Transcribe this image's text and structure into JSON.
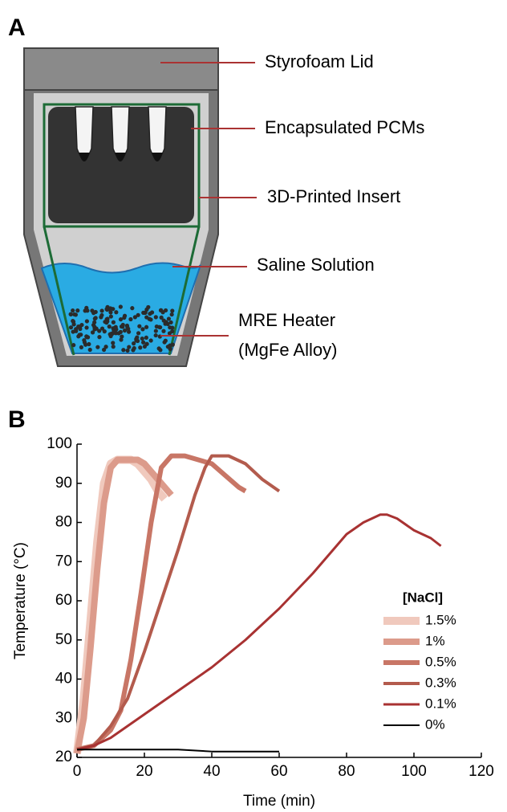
{
  "panel_a": {
    "label": "A",
    "labels": [
      "Styrofoam Lid",
      "Encapsulated PCMs",
      "3D-Printed Insert",
      "Saline Solution",
      "MRE Heater",
      "(MgFe Alloy)"
    ]
  },
  "panel_b": {
    "label": "B"
  },
  "chart_data": {
    "type": "line",
    "xlabel": "Time (min)",
    "ylabel": "Temperature (°C)",
    "legend_title": "[NaCl]",
    "xlim": [
      0,
      120
    ],
    "ylim": [
      20,
      100
    ],
    "xticks": [
      0,
      20,
      40,
      60,
      80,
      100,
      120
    ],
    "yticks": [
      20,
      30,
      40,
      50,
      60,
      70,
      80,
      90,
      100
    ],
    "grid": false,
    "series": [
      {
        "name": "1.5%",
        "color": "#f0c9bd",
        "width": 10,
        "x": [
          0,
          2,
          4,
          6,
          8,
          10,
          12,
          14,
          16,
          18,
          20,
          22,
          24,
          26
        ],
        "values": [
          21,
          35,
          55,
          75,
          90,
          95,
          96,
          96,
          96,
          95,
          93,
          91,
          88,
          86
        ]
      },
      {
        "name": "1%",
        "color": "#dc9b8b",
        "width": 8,
        "x": [
          0,
          2,
          4,
          6,
          8,
          10,
          12,
          14,
          16,
          18,
          20,
          22,
          24,
          26,
          28
        ],
        "values": [
          21,
          30,
          48,
          68,
          85,
          94,
          96,
          96,
          96,
          96,
          95,
          93,
          91,
          89,
          87
        ]
      },
      {
        "name": "0.5%",
        "color": "#c87666",
        "width": 6,
        "x": [
          0,
          5,
          10,
          13,
          16,
          19,
          22,
          25,
          28,
          32,
          36,
          40,
          44,
          48,
          50
        ],
        "values": [
          22,
          23,
          27,
          32,
          45,
          62,
          80,
          94,
          97,
          97,
          96,
          95,
          92,
          89,
          88
        ]
      },
      {
        "name": "0.3%",
        "color": "#b35b4d",
        "width": 4,
        "x": [
          0,
          5,
          10,
          15,
          20,
          25,
          30,
          35,
          38,
          40,
          45,
          50,
          55,
          60
        ],
        "values": [
          22,
          23,
          28,
          35,
          47,
          60,
          73,
          87,
          94,
          97,
          97,
          95,
          91,
          88
        ]
      },
      {
        "name": "0.1%",
        "color": "#a83232",
        "width": 3,
        "x": [
          0,
          5,
          10,
          15,
          20,
          30,
          40,
          50,
          60,
          70,
          80,
          85,
          90,
          92,
          95,
          100,
          105,
          108
        ],
        "values": [
          22,
          23,
          25,
          28,
          31,
          37,
          43,
          50,
          58,
          67,
          77,
          80,
          82,
          82,
          81,
          78,
          76,
          74
        ]
      },
      {
        "name": "0%",
        "color": "#000000",
        "width": 2,
        "x": [
          0,
          10,
          20,
          30,
          40,
          50,
          60
        ],
        "values": [
          22,
          22,
          22,
          22,
          21.5,
          21.5,
          21.5
        ]
      }
    ]
  }
}
